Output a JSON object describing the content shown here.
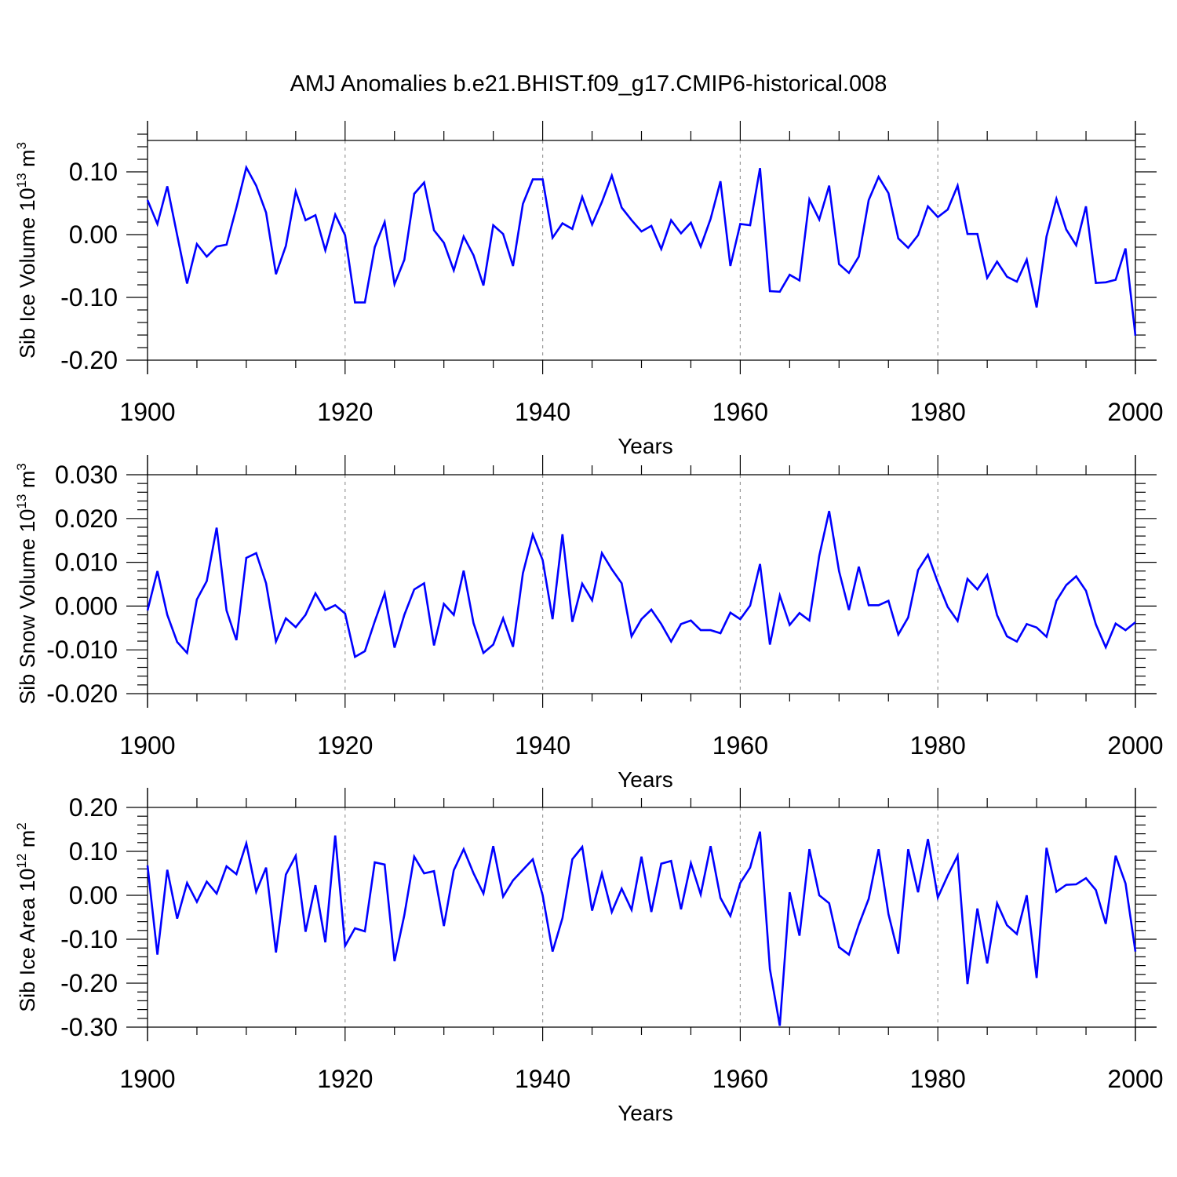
{
  "title": "AMJ Anomalies b.e21.BHIST.f09_g17.CMIP6-historical.008",
  "colors": {
    "line": "#0000ff",
    "axis": "#000000",
    "refline": "#999999"
  },
  "chart_data": [
    {
      "type": "line",
      "name": "sib-ice-volume",
      "title": "AMJ Anomalies b.e21.BHIST.f09_g17.CMIP6-historical.008",
      "ylabel_main": "Sib Ice Volume 10",
      "ylabel_exp": "13",
      "ylabel_unit": " m",
      "ylabel_unit_exp": "3",
      "xlabel": "Years",
      "xlim": [
        1900,
        2000
      ],
      "ylim": [
        -0.2,
        0.15
      ],
      "yticks": [
        -0.2,
        -0.1,
        0.0,
        0.1
      ],
      "ytick_labels": [
        "-0.20",
        "-0.10",
        "0.00",
        "0.10"
      ],
      "xticks": [
        1900,
        1920,
        1940,
        1960,
        1980,
        2000
      ],
      "xtick_labels": [
        "1900",
        "1920",
        "1940",
        "1960",
        "1980",
        "2000"
      ],
      "refline_years": [
        1920,
        1940,
        1960,
        1980
      ],
      "x_start": 1900,
      "values": [
        0.055,
        0.017,
        0.077,
        -0.001,
        -0.078,
        -0.015,
        -0.035,
        -0.019,
        -0.016,
        0.043,
        0.107,
        0.078,
        0.035,
        -0.063,
        -0.018,
        0.069,
        0.023,
        0.031,
        -0.025,
        0.032,
        -0.001,
        -0.108,
        -0.108,
        -0.02,
        0.02,
        -0.079,
        -0.04,
        0.065,
        0.083,
        0.007,
        -0.013,
        -0.057,
        -0.003,
        -0.033,
        -0.081,
        0.015,
        0.001,
        -0.05,
        0.049,
        0.088,
        0.088,
        -0.005,
        0.018,
        0.009,
        0.06,
        0.016,
        0.052,
        0.094,
        0.043,
        0.023,
        0.005,
        0.014,
        -0.023,
        0.023,
        0.002,
        0.019,
        -0.019,
        0.025,
        0.085,
        -0.05,
        0.017,
        0.015,
        0.106,
        -0.09,
        -0.091,
        -0.064,
        -0.073,
        0.056,
        0.024,
        0.078,
        -0.047,
        -0.061,
        -0.035,
        0.055,
        0.092,
        0.066,
        -0.006,
        -0.021,
        -0.001,
        0.045,
        0.028,
        0.04,
        0.078,
        0.001,
        0.001,
        -0.069,
        -0.043,
        -0.067,
        -0.075,
        -0.04,
        -0.116,
        -0.003,
        0.057,
        0.008,
        -0.017,
        0.045,
        -0.077,
        -0.076,
        -0.072,
        -0.022,
        -0.161
      ]
    },
    {
      "type": "line",
      "name": "sib-snow-volume",
      "ylabel_main": "Sib Snow Volume 10",
      "ylabel_exp": "13",
      "ylabel_unit": " m",
      "ylabel_unit_exp": "3",
      "xlabel": "Years",
      "xlim": [
        1900,
        2000
      ],
      "ylim": [
        -0.02,
        0.03
      ],
      "yticks": [
        -0.02,
        -0.01,
        0.0,
        0.01,
        0.02,
        0.03
      ],
      "ytick_labels": [
        "-0.020",
        "-0.010",
        "0.000",
        "0.010",
        "0.020",
        "0.030"
      ],
      "xticks": [
        1900,
        1920,
        1940,
        1960,
        1980,
        2000
      ],
      "xtick_labels": [
        "1900",
        "1920",
        "1940",
        "1960",
        "1980",
        "2000"
      ],
      "refline_years": [
        1920,
        1940,
        1960,
        1980
      ],
      "x_start": 1900,
      "values": [
        -0.001,
        0.008,
        -0.002,
        -0.0082,
        -0.0107,
        0.0015,
        0.0057,
        0.0179,
        -0.001,
        -0.0078,
        0.011,
        0.0121,
        0.0052,
        -0.0081,
        -0.0028,
        -0.0048,
        -0.002,
        0.0029,
        -0.0009,
        0.0002,
        -0.0017,
        -0.0116,
        -0.0103,
        -0.0035,
        0.0029,
        -0.0095,
        -0.002,
        0.0038,
        0.0052,
        -0.009,
        0.0005,
        -0.002,
        0.0081,
        -0.0039,
        -0.0107,
        -0.0088,
        -0.0028,
        -0.0093,
        0.0075,
        0.0163,
        0.0105,
        -0.003,
        0.0164,
        -0.0036,
        0.0051,
        0.0013,
        0.0121,
        0.0084,
        0.0052,
        -0.0069,
        -0.003,
        -0.0008,
        -0.0041,
        -0.0081,
        -0.0041,
        -0.0033,
        -0.0055,
        -0.0055,
        -0.0062,
        -0.0015,
        -0.003,
        0.0001,
        0.0096,
        -0.0088,
        0.0024,
        -0.0043,
        -0.0016,
        -0.0033,
        0.0115,
        0.0217,
        0.008,
        -0.0009,
        0.009,
        0.0002,
        0.0002,
        0.0012,
        -0.0065,
        -0.0026,
        0.0082,
        0.0117,
        0.0054,
        -0.0002,
        -0.0034,
        0.0062,
        0.0038,
        0.0071,
        -0.0021,
        -0.0069,
        -0.0081,
        -0.0041,
        -0.0049,
        -0.007,
        0.0012,
        0.0048,
        0.0068,
        0.0035,
        -0.0042,
        -0.0094,
        -0.004,
        -0.0055,
        -0.0037
      ]
    },
    {
      "type": "line",
      "name": "sib-ice-area",
      "ylabel_main": "Sib Ice Area 10",
      "ylabel_exp": "12",
      "ylabel_unit": " m",
      "ylabel_unit_exp": "2",
      "xlabel": "Years",
      "xlim": [
        1900,
        2000
      ],
      "ylim": [
        -0.3,
        0.2
      ],
      "yticks": [
        -0.3,
        -0.2,
        -0.1,
        0.0,
        0.1,
        0.2
      ],
      "ytick_labels": [
        "-0.30",
        "-0.20",
        "-0.10",
        "0.00",
        "0.10",
        "0.20"
      ],
      "xticks": [
        1900,
        1920,
        1940,
        1960,
        1980,
        2000
      ],
      "xtick_labels": [
        "1900",
        "1920",
        "1940",
        "1960",
        "1980",
        "2000"
      ],
      "refline_years": [
        1920,
        1940,
        1960,
        1980
      ],
      "x_start": 1900,
      "values": [
        0.068,
        -0.135,
        0.058,
        -0.053,
        0.028,
        -0.015,
        0.031,
        0.004,
        0.066,
        0.048,
        0.118,
        0.008,
        0.063,
        -0.13,
        0.047,
        0.09,
        -0.083,
        0.023,
        -0.107,
        0.136,
        -0.115,
        -0.075,
        -0.082,
        0.075,
        0.07,
        -0.15,
        -0.045,
        0.088,
        0.05,
        0.055,
        -0.07,
        0.057,
        0.105,
        0.05,
        0.004,
        0.112,
        -0.003,
        0.034,
        0.058,
        0.082,
        0.0,
        -0.128,
        -0.052,
        0.082,
        0.11,
        -0.035,
        0.05,
        -0.038,
        0.015,
        -0.033,
        0.088,
        -0.038,
        0.072,
        0.078,
        -0.032,
        0.073,
        0.002,
        0.112,
        -0.006,
        -0.047,
        0.028,
        0.063,
        0.145,
        -0.168,
        -0.297,
        0.007,
        -0.092,
        0.105,
        0.0,
        -0.018,
        -0.118,
        -0.135,
        -0.067,
        -0.008,
        0.105,
        -0.043,
        -0.133,
        0.105,
        0.007,
        0.128,
        -0.005,
        0.045,
        0.09,
        -0.202,
        -0.03,
        -0.155,
        -0.018,
        -0.068,
        -0.088,
        0.0,
        -0.188,
        0.108,
        0.008,
        0.024,
        0.025,
        0.039,
        0.012,
        -0.065,
        0.09,
        0.027,
        -0.128
      ]
    }
  ]
}
